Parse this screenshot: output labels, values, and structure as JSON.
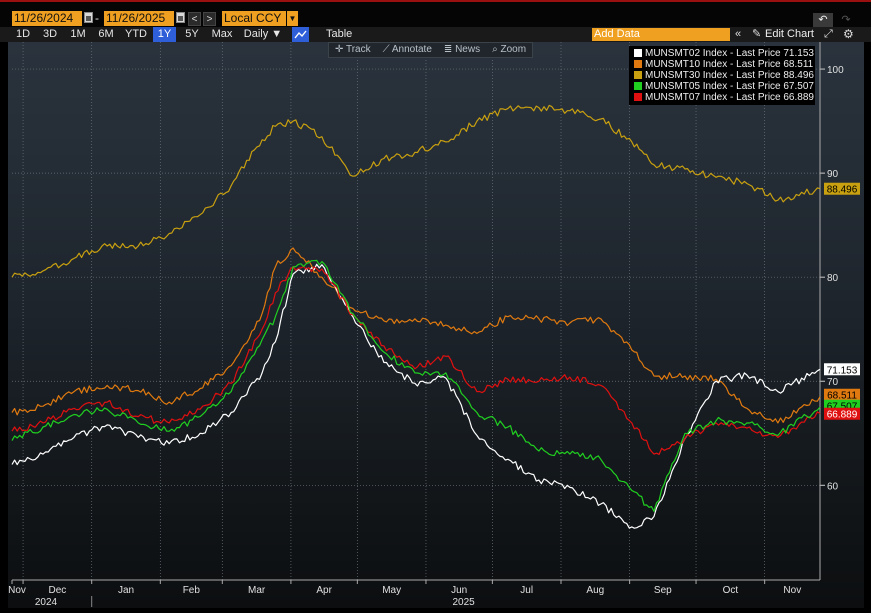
{
  "toolbar": {
    "start_date": "11/26/2024",
    "end_date": "11/26/2025",
    "separator": "-",
    "prev_label": "<",
    "next_label": ">",
    "currency": "Local CCY",
    "undo_icon": "undo-icon",
    "redo_icon": "redo-icon"
  },
  "periods": [
    {
      "label": "1D"
    },
    {
      "label": "3D"
    },
    {
      "label": "1M"
    },
    {
      "label": "6M"
    },
    {
      "label": "YTD"
    },
    {
      "label": "1Y"
    },
    {
      "label": "5Y"
    },
    {
      "label": "Max"
    }
  ],
  "frequency": "Daily ▼",
  "table_label": "Table",
  "add_data_placeholder": "Add Data",
  "edit_chart_label": "Edit Chart",
  "annotation_bar": {
    "track": "Track",
    "annotate": "Annotate",
    "news": "News",
    "zoom": "Zoom"
  },
  "colors": {
    "MUNSMT02": "#ffffff",
    "MUNSMT10": "#e07a10",
    "MUNSMT30": "#c8a010",
    "MUNSMT05": "#20d020",
    "MUNSMT07": "#e01010",
    "accent": "#f0a020",
    "active_period": "#2f5fd8"
  },
  "chart_data": {
    "type": "line",
    "x_axis": {
      "tick_labels": [
        "Nov",
        "Dec",
        "Jan",
        "Feb",
        "Mar",
        "Apr",
        "May",
        "Jun",
        "Jul",
        "Aug",
        "Sep",
        "Oct",
        "Nov"
      ],
      "year_labels": [
        "2024",
        "2025"
      ],
      "range": [
        "2024-11-26",
        "2025-11-26"
      ]
    },
    "y_axis": {
      "side": "right",
      "ticks": [
        60,
        70,
        80,
        90,
        100
      ],
      "ylim": [
        50.9,
        102.6
      ]
    },
    "grid": true,
    "legend_placement": "top-right",
    "series": [
      {
        "name": "MUNSMT02 Index - Last Price 71.153",
        "last_label": "71.153",
        "x": [
          "2024-11-26",
          "2024-12-10",
          "2024-12-24",
          "2025-01-08",
          "2025-01-22",
          "2025-02-05",
          "2025-02-19",
          "2025-03-05",
          "2025-03-19",
          "2025-03-25",
          "2025-04-02",
          "2025-04-15",
          "2025-04-29",
          "2025-05-13",
          "2025-05-27",
          "2025-06-10",
          "2025-06-24",
          "2025-07-08",
          "2025-07-22",
          "2025-08-05",
          "2025-08-19",
          "2025-09-02",
          "2025-09-12",
          "2025-09-26",
          "2025-10-10",
          "2025-10-24",
          "2025-11-07",
          "2025-11-26"
        ],
        "values": [
          62.0,
          63.0,
          64.6,
          65.8,
          64.6,
          64.0,
          65.0,
          67.0,
          70.8,
          73.8,
          80.3,
          81.2,
          76.2,
          71.8,
          69.8,
          70.3,
          64.8,
          62.5,
          60.5,
          59.8,
          58.2,
          56.0,
          57.0,
          64.5,
          70.0,
          70.6,
          69.0,
          71.15
        ]
      },
      {
        "name": "MUNSMT10 Index - Last Price 68.511",
        "last_label": "68.511",
        "x": [
          "2024-11-26",
          "2024-12-10",
          "2024-12-24",
          "2025-01-08",
          "2025-01-22",
          "2025-02-05",
          "2025-02-19",
          "2025-03-05",
          "2025-03-19",
          "2025-03-25",
          "2025-04-02",
          "2025-04-15",
          "2025-04-29",
          "2025-05-13",
          "2025-05-27",
          "2025-06-10",
          "2025-06-24",
          "2025-07-08",
          "2025-07-22",
          "2025-08-05",
          "2025-08-19",
          "2025-09-02",
          "2025-09-12",
          "2025-09-26",
          "2025-10-10",
          "2025-10-24",
          "2025-11-07",
          "2025-11-26"
        ],
        "values": [
          67.0,
          67.6,
          69.0,
          69.6,
          69.1,
          68.0,
          69.3,
          71.5,
          76.5,
          81.0,
          82.8,
          80.0,
          77.0,
          75.8,
          76.0,
          75.4,
          74.6,
          76.2,
          76.0,
          75.6,
          76.0,
          73.0,
          70.5,
          70.5,
          70.2,
          67.4,
          66.0,
          68.51
        ]
      },
      {
        "name": "MUNSMT30 Index - Last Price 88.496",
        "last_label": "88.496",
        "x": [
          "2024-11-26",
          "2024-12-10",
          "2024-12-24",
          "2025-01-08",
          "2025-01-22",
          "2025-02-05",
          "2025-02-19",
          "2025-03-05",
          "2025-03-19",
          "2025-03-25",
          "2025-04-02",
          "2025-04-15",
          "2025-04-29",
          "2025-05-13",
          "2025-05-27",
          "2025-06-10",
          "2025-06-24",
          "2025-07-08",
          "2025-07-22",
          "2025-08-05",
          "2025-08-19",
          "2025-09-02",
          "2025-09-12",
          "2025-09-26",
          "2025-10-10",
          "2025-10-24",
          "2025-11-07",
          "2025-11-26"
        ],
        "values": [
          80.0,
          80.6,
          81.8,
          83.0,
          83.0,
          84.2,
          86.0,
          88.8,
          93.2,
          94.5,
          95.0,
          93.5,
          89.7,
          91.4,
          92.0,
          93.0,
          95.0,
          96.2,
          96.3,
          96.0,
          95.2,
          93.0,
          90.8,
          90.4,
          89.6,
          89.0,
          87.4,
          88.5
        ]
      },
      {
        "name": "MUNSMT05 Index - Last Price 67.507",
        "last_label": "67.507",
        "x": [
          "2024-11-26",
          "2024-12-10",
          "2024-12-24",
          "2025-01-08",
          "2025-01-22",
          "2025-02-05",
          "2025-02-19",
          "2025-03-05",
          "2025-03-19",
          "2025-03-25",
          "2025-04-02",
          "2025-04-15",
          "2025-04-29",
          "2025-05-13",
          "2025-05-27",
          "2025-06-10",
          "2025-06-24",
          "2025-07-08",
          "2025-07-22",
          "2025-08-05",
          "2025-08-19",
          "2025-09-02",
          "2025-09-12",
          "2025-09-26",
          "2025-10-10",
          "2025-10-24",
          "2025-11-07",
          "2025-11-26"
        ],
        "values": [
          64.3,
          65.6,
          66.8,
          67.3,
          66.0,
          65.2,
          66.6,
          69.0,
          74.0,
          76.2,
          81.0,
          81.5,
          76.5,
          72.8,
          70.8,
          70.8,
          67.0,
          65.6,
          63.3,
          63.0,
          62.5,
          59.5,
          57.5,
          65.0,
          66.2,
          66.0,
          64.8,
          67.51
        ]
      },
      {
        "name": "MUNSMT07 Index - Last Price 66.889",
        "last_label": "66.889",
        "x": [
          "2024-11-26",
          "2024-12-10",
          "2024-12-24",
          "2025-01-08",
          "2025-01-22",
          "2025-02-05",
          "2025-02-19",
          "2025-03-05",
          "2025-03-19",
          "2025-03-25",
          "2025-04-02",
          "2025-04-15",
          "2025-04-29",
          "2025-05-13",
          "2025-05-27",
          "2025-06-10",
          "2025-06-24",
          "2025-07-08",
          "2025-07-22",
          "2025-08-05",
          "2025-08-19",
          "2025-09-02",
          "2025-09-12",
          "2025-09-26",
          "2025-10-10",
          "2025-10-24",
          "2025-11-07",
          "2025-11-26"
        ],
        "values": [
          65.2,
          66.0,
          67.4,
          68.0,
          66.6,
          66.0,
          67.3,
          69.8,
          75.0,
          78.5,
          81.0,
          80.8,
          76.4,
          73.4,
          71.2,
          72.4,
          69.0,
          70.2,
          70.0,
          70.4,
          69.6,
          66.0,
          63.0,
          64.5,
          66.0,
          65.5,
          64.6,
          66.89
        ]
      }
    ]
  }
}
